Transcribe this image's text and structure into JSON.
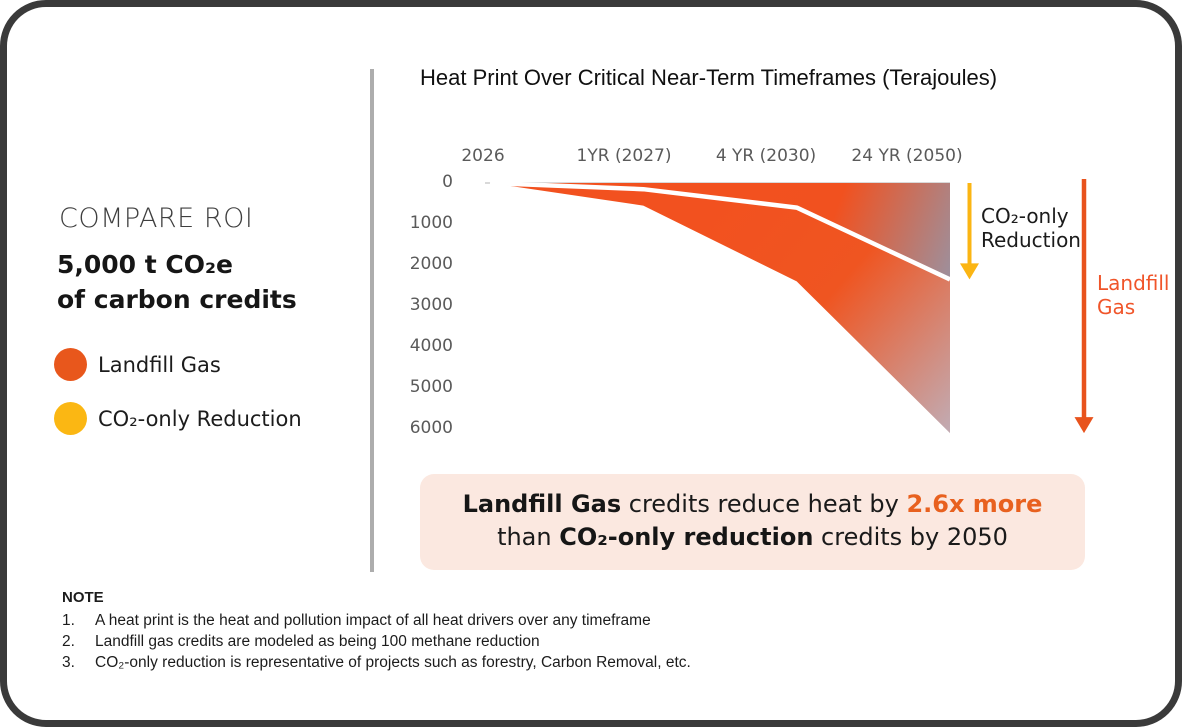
{
  "left_panel": {
    "title": "COMPARE ROI",
    "stat_line1": "5,000 t CO₂e",
    "stat_line2": "of carbon credits",
    "legend": [
      {
        "label": "Landfill Gas",
        "color": "#E8571C"
      },
      {
        "label": "CO₂-only Reduction",
        "color": "#FBB713"
      }
    ]
  },
  "chart": {
    "title": "Heat Print Over Critical Near-Term Timeframes (Terajoules)",
    "annotations": {
      "co2_line1": "CO₂-only",
      "co2_line2": "Reduction",
      "landfill_line1": "Landfill",
      "landfill_line2": "Gas"
    }
  },
  "chart_data": {
    "type": "area",
    "title": "Heat Print Over Critical Near-Term Timeframes (Terajoules)",
    "x_categories": [
      "2026",
      "1YR (2027)",
      "4 YR (2030)",
      "24 YR (2050)"
    ],
    "series": [
      {
        "name": "CO₂-only Reduction",
        "color": "#FBB513",
        "values": [
          0,
          150,
          600,
          2350
        ]
      },
      {
        "name": "Landfill Gas",
        "color": "#F1511F",
        "values": [
          0,
          550,
          2400,
          6100
        ]
      }
    ],
    "yticks": [
      0,
      1000,
      2000,
      3000,
      4000,
      5000,
      6000
    ],
    "ylim": [
      0,
      6400
    ],
    "ylabel": "Terajoules",
    "y_axis_inverted": true,
    "grid": false,
    "legend_position": "left-panel",
    "annotation": "Landfill Gas credits reduce heat by 2.6x more than CO₂-only reduction credits by 2050"
  },
  "callout": {
    "seg1": "Landfill Gas",
    "seg2": " credits reduce heat by ",
    "seg3": "2.6x more",
    "seg4": "than ",
    "seg5": "CO₂-only reduction",
    "seg6": " credits by 2050"
  },
  "note": {
    "heading": "NOTE",
    "items": [
      "A heat print is the heat and pollution impact of all heat drivers over any timeframe",
      "Landfill gas credits are modeled as being 100 methane reduction",
      "CO₂-only reduction is representative of projects such as forestry, Carbon Removal, etc."
    ]
  },
  "colors": {
    "area_orange": "#F1511F",
    "fade_gray_upper": "#9E8F9B",
    "fade_mauve_lower": "#C2AAB1",
    "yellow": "#FBB513",
    "arrow_orange": "#E8531D",
    "annotation_orange": "#F0552A",
    "callout_bg": "#FBE8E0",
    "callout_orange": "#E8611F",
    "card_border": "#3A3A3A",
    "divider_gray": "#ADADAD",
    "axis_text": "#5A5A5A",
    "zero_gridline": "#D9D9D9"
  }
}
